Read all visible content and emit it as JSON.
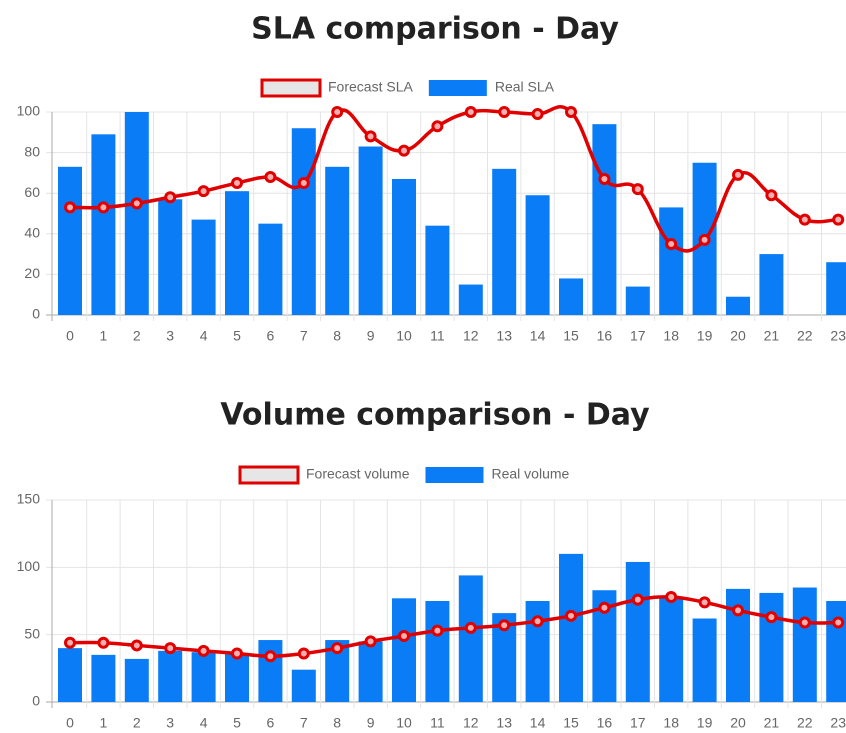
{
  "chart_data": [
    {
      "type": "combo",
      "title": "SLA comparison - Day",
      "categories": [
        "0",
        "1",
        "2",
        "3",
        "4",
        "5",
        "6",
        "7",
        "8",
        "9",
        "10",
        "11",
        "12",
        "13",
        "14",
        "15",
        "16",
        "17",
        "18",
        "19",
        "20",
        "21",
        "22",
        "23"
      ],
      "series": [
        {
          "name": "Forecast SLA",
          "type": "line",
          "color": "#e00000",
          "values": [
            53,
            53,
            55,
            58,
            61,
            65,
            68,
            65,
            100,
            88,
            81,
            93,
            100,
            100,
            99,
            100,
            67,
            62,
            35,
            37,
            69,
            59,
            47,
            47
          ]
        },
        {
          "name": "Real SLA",
          "type": "bar",
          "color": "#0a7cf5",
          "values": [
            73,
            89,
            100,
            57,
            47,
            61,
            45,
            92,
            73,
            83,
            67,
            44,
            15,
            72,
            59,
            18,
            94,
            14,
            53,
            75,
            9,
            30,
            0,
            26
          ]
        }
      ],
      "ylim": [
        0,
        100
      ],
      "yticks": [
        0,
        20,
        40,
        60,
        80,
        100
      ],
      "grid": true
    },
    {
      "type": "combo",
      "title": "Volume comparison - Day",
      "categories": [
        "0",
        "1",
        "2",
        "3",
        "4",
        "5",
        "6",
        "7",
        "8",
        "9",
        "10",
        "11",
        "12",
        "13",
        "14",
        "15",
        "16",
        "17",
        "18",
        "19",
        "20",
        "21",
        "22",
        "23"
      ],
      "series": [
        {
          "name": "Forecast volume",
          "type": "line",
          "color": "#e00000",
          "values": [
            44,
            44,
            42,
            40,
            38,
            36,
            34,
            36,
            40,
            45,
            49,
            53,
            55,
            57,
            60,
            64,
            70,
            76,
            78,
            74,
            68,
            63,
            59,
            59
          ]
        },
        {
          "name": "Real volume",
          "type": "bar",
          "color": "#0a7cf5",
          "values": [
            40,
            35,
            32,
            38,
            37,
            36,
            46,
            24,
            46,
            45,
            77,
            75,
            94,
            66,
            75,
            110,
            83,
            104,
            78,
            62,
            84,
            81,
            85,
            75
          ]
        }
      ],
      "ylim": [
        0,
        150
      ],
      "yticks": [
        0,
        50,
        100,
        150
      ],
      "grid": true
    }
  ]
}
